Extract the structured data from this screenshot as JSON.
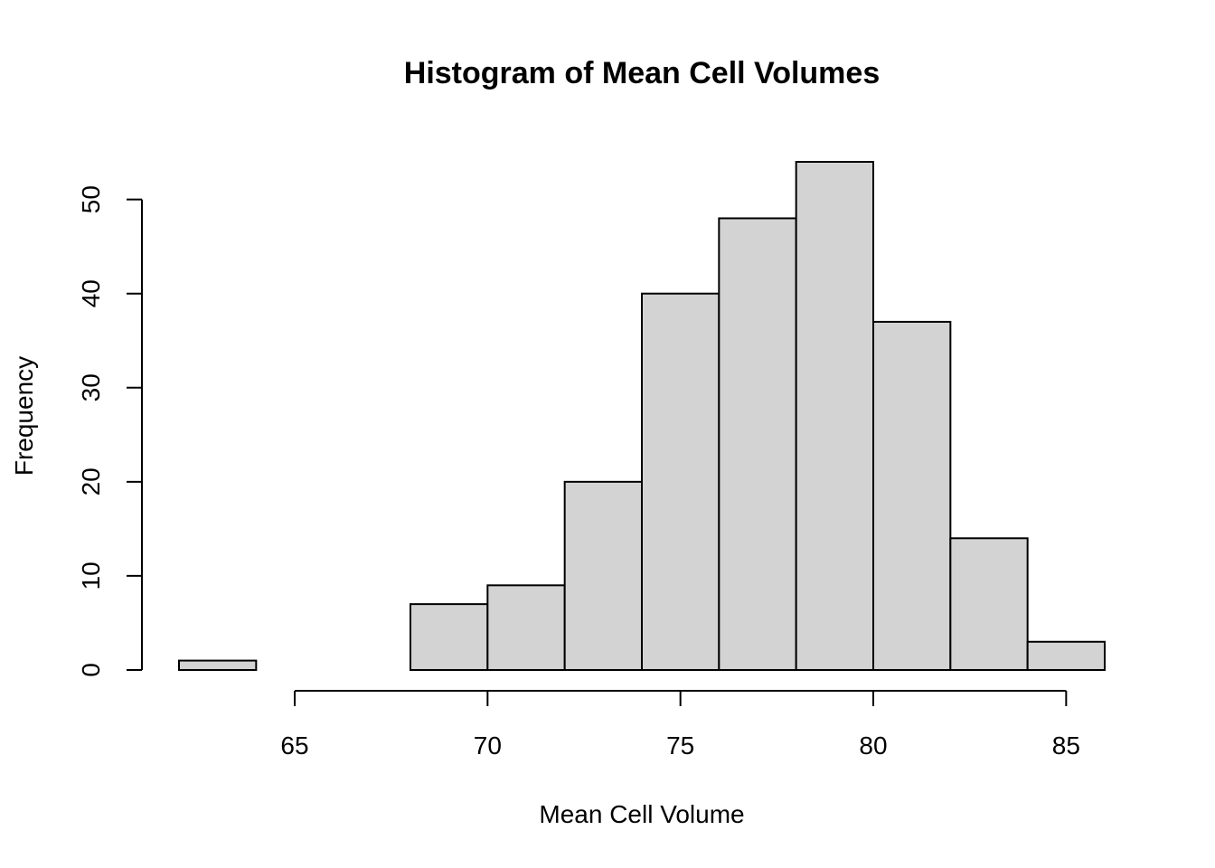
{
  "chart_data": {
    "type": "bar",
    "title": "Histogram of Mean Cell Volumes",
    "xlabel": "Mean Cell Volume",
    "ylabel": "Frequency",
    "bins": [
      {
        "start": 62,
        "end": 64,
        "count": 1
      },
      {
        "start": 64,
        "end": 66,
        "count": 0
      },
      {
        "start": 66,
        "end": 68,
        "count": 0
      },
      {
        "start": 68,
        "end": 70,
        "count": 7
      },
      {
        "start": 70,
        "end": 72,
        "count": 9
      },
      {
        "start": 72,
        "end": 74,
        "count": 20
      },
      {
        "start": 74,
        "end": 76,
        "count": 40
      },
      {
        "start": 76,
        "end": 78,
        "count": 48
      },
      {
        "start": 78,
        "end": 80,
        "count": 54
      },
      {
        "start": 80,
        "end": 82,
        "count": 37
      },
      {
        "start": 82,
        "end": 84,
        "count": 14
      },
      {
        "start": 84,
        "end": 86,
        "count": 3
      }
    ],
    "xlim": [
      62,
      86
    ],
    "ylim": [
      0,
      54
    ],
    "xticks": [
      65,
      70,
      75,
      80,
      85
    ],
    "yticks": [
      0,
      10,
      20,
      30,
      40,
      50
    ],
    "grid": false,
    "bar_fill": "#d3d3d3",
    "bar_stroke": "#000000"
  }
}
